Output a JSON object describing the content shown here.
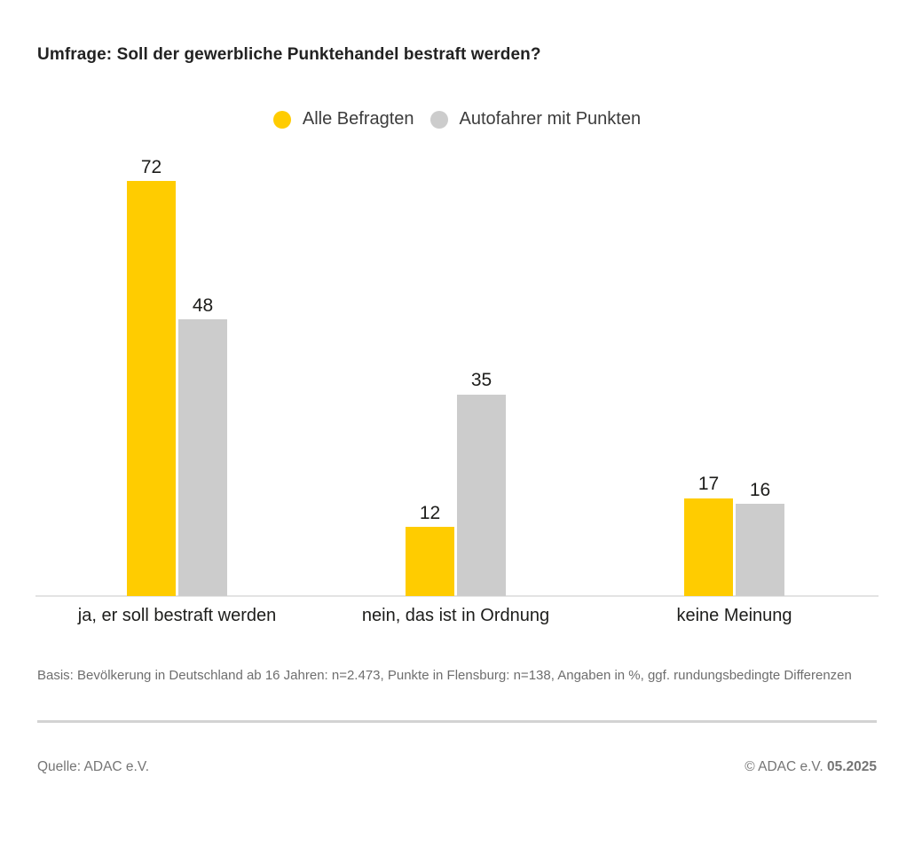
{
  "title": "Umfrage: Soll der gewerbliche Punktehandel bestraft werden?",
  "legend": {
    "items": [
      {
        "label": "Alle Befragten",
        "color": "#FFCC00"
      },
      {
        "label": "Autofahrer mit Punkten",
        "color": "#CCCCCC"
      }
    ]
  },
  "chart_data": {
    "type": "bar",
    "title": "Umfrage: Soll der gewerbliche Punktehandel bestraft werden?",
    "categories": [
      "ja, er soll bestraft werden",
      "nein, das ist in Ordnung",
      "keine Meinung"
    ],
    "series": [
      {
        "name": "Alle Befragten",
        "color": "#FFCC00",
        "values": [
          72,
          12,
          17
        ]
      },
      {
        "name": "Autofahrer mit Punkten",
        "color": "#CCCCCC",
        "values": [
          48,
          35,
          16
        ]
      }
    ],
    "unit": "%",
    "ylim": [
      0,
      80
    ],
    "grid": false,
    "value_labels": true,
    "legend_position": "top-center"
  },
  "footnote": "Basis: Bevölkerung in Deutschland ab 16 Jahren: n=2.473, Punkte in Flensburg: n=138, Angaben in %, ggf. rundungsbedingte Differenzen",
  "footer": {
    "source": "Quelle: ADAC e.V.",
    "copyright_prefix": "© ADAC e.V.",
    "copyright_date": "05.2025"
  }
}
